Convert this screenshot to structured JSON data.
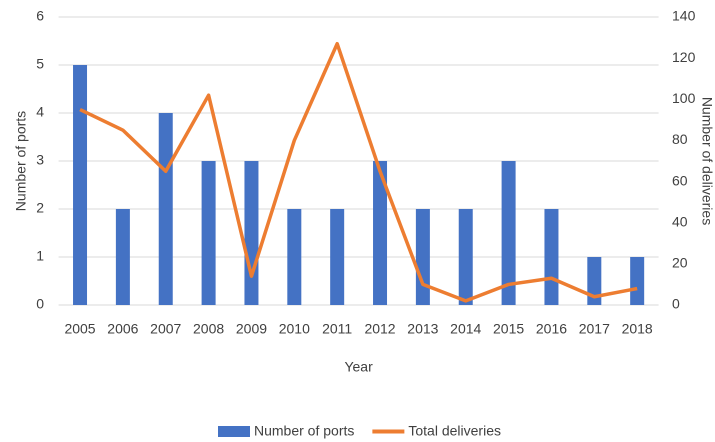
{
  "chart_data": {
    "type": "bar-line",
    "categories": [
      "2005",
      "2006",
      "2007",
      "2008",
      "2009",
      "2010",
      "2011",
      "2012",
      "2013",
      "2014",
      "2015",
      "2016",
      "2017",
      "2018"
    ],
    "series": [
      {
        "name": "Number of ports",
        "type": "bar",
        "color": "#4472c4",
        "values": [
          5,
          2,
          4,
          3,
          3,
          2,
          2,
          3,
          2,
          2,
          3,
          2,
          1,
          1
        ]
      },
      {
        "name": "Total deliveries",
        "type": "line",
        "axis": "y2",
        "color": "#ed7d31",
        "values": [
          95,
          85,
          65,
          102,
          14,
          80,
          127,
          65,
          10,
          2,
          10,
          13,
          4,
          8
        ]
      }
    ],
    "xlabel": "Year",
    "ylabel": "Number of ports",
    "y2label": "Number of deliveries",
    "ylim": [
      0,
      6
    ],
    "yticks": [
      0,
      1,
      2,
      3,
      4,
      5,
      6
    ],
    "y2lim": [
      0,
      140
    ],
    "y2ticks": [
      0,
      20,
      40,
      60,
      80,
      100,
      120,
      140
    ],
    "grid": true,
    "legend": "bottom"
  }
}
